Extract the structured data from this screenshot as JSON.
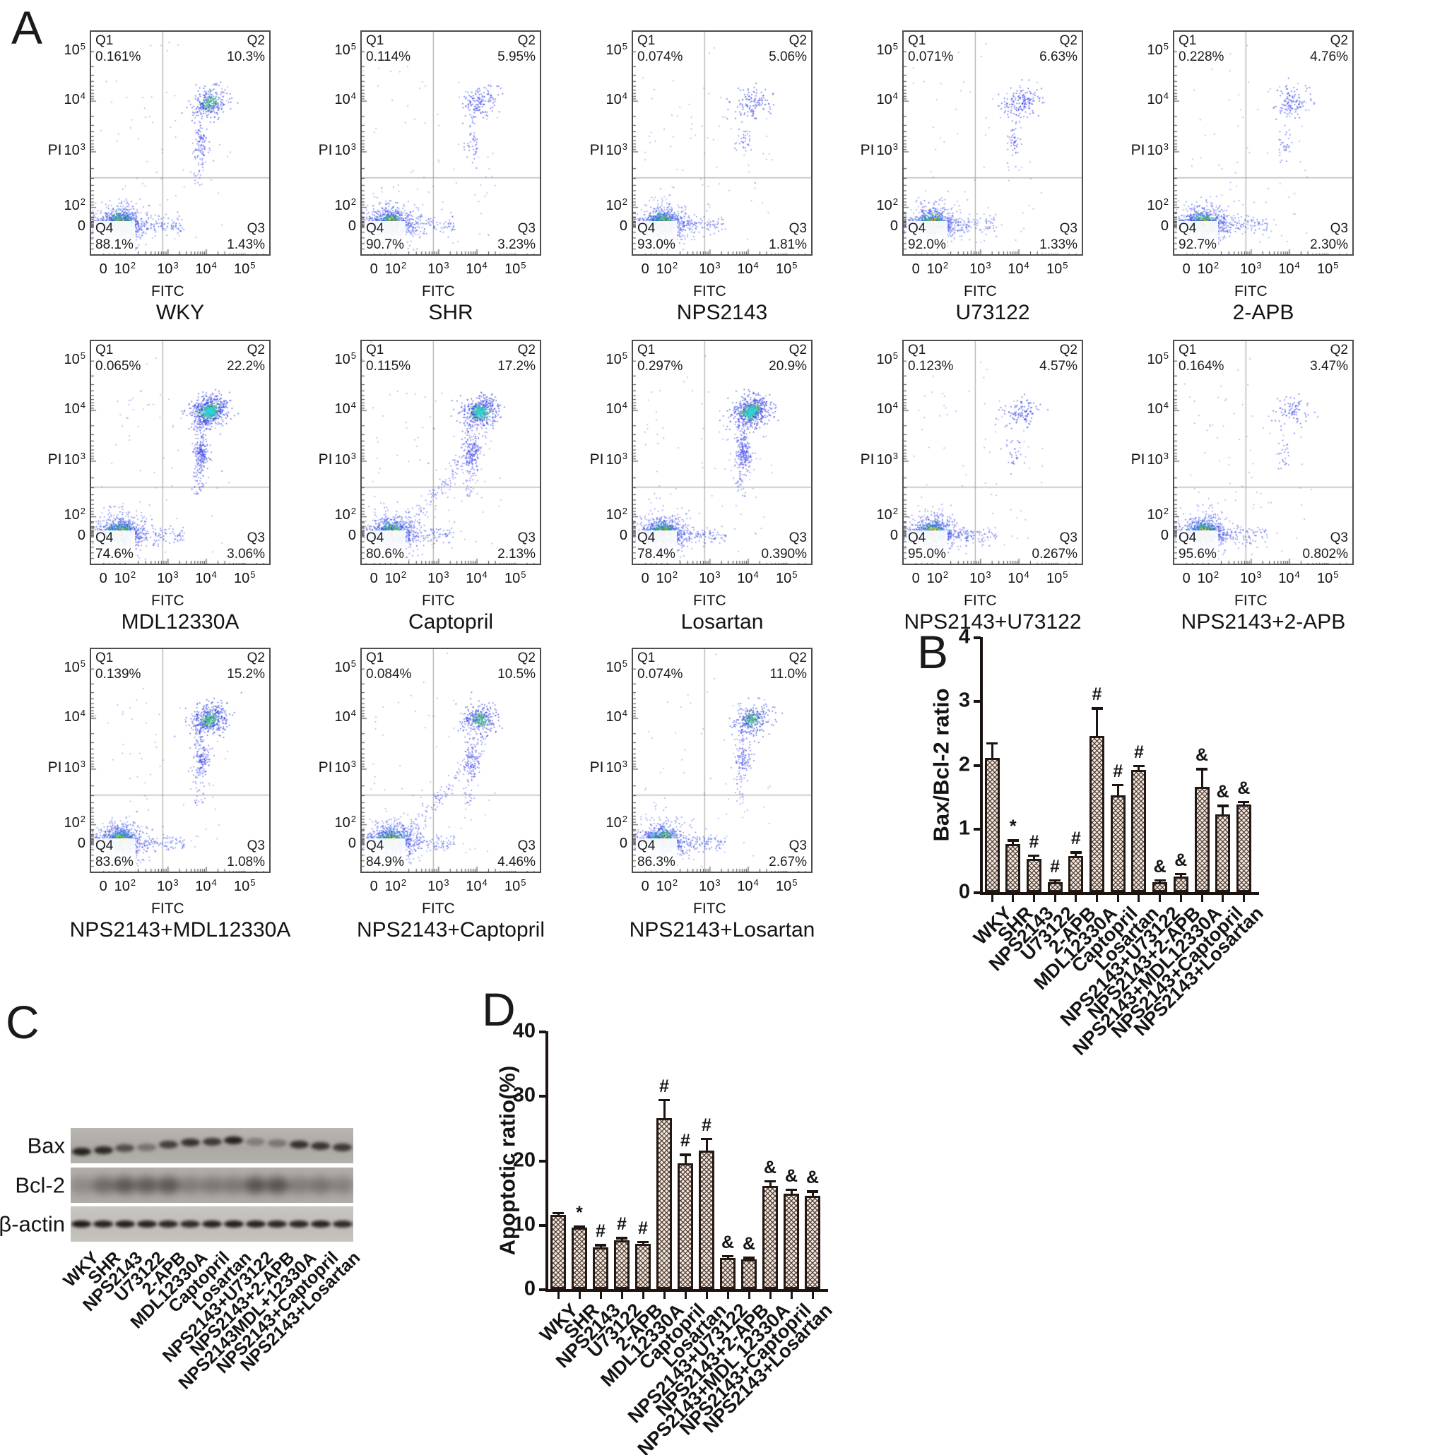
{
  "panels": {
    "A": {
      "label": "A"
    },
    "B": {
      "label": "B"
    },
    "C": {
      "label": "C"
    },
    "D": {
      "label": "D"
    }
  },
  "flow": {
    "x_axis_label": "FITC",
    "y_axis_label": "PI",
    "x_ticks": [
      {
        "t": "0"
      },
      {
        "t": "10",
        "e": "2"
      },
      {
        "t": "10",
        "e": "3"
      },
      {
        "t": "10",
        "e": "4"
      },
      {
        "t": "10",
        "e": "5"
      }
    ],
    "y_ticks": [
      {
        "t": "10",
        "e": "5"
      },
      {
        "t": "10",
        "e": "4"
      },
      {
        "t": "10",
        "e": "3",
        "prefix": "PI"
      },
      {
        "t": "10",
        "e": "2"
      },
      {
        "t": "0"
      }
    ],
    "quadrant_names": {
      "q1": "Q1",
      "q2": "Q2",
      "q3": "Q3",
      "q4": "Q4"
    },
    "plots": [
      {
        "title": "WKY",
        "q1": "0.161%",
        "q2": "10.3%",
        "q4": "88.1%",
        "q3": "1.43%",
        "q2_value": 10.3
      },
      {
        "title": "SHR",
        "q1": "0.114%",
        "q2": "5.95%",
        "q4": "90.7%",
        "q3": "3.23%",
        "q2_value": 5.95
      },
      {
        "title": "NPS2143",
        "q1": "0.074%",
        "q2": "5.06%",
        "q4": "93.0%",
        "q3": "1.81%",
        "q2_value": 5.06
      },
      {
        "title": "U73122",
        "q1": "0.071%",
        "q2": "6.63%",
        "q4": "92.0%",
        "q3": "1.33%",
        "q2_value": 6.63
      },
      {
        "title": "2-APB",
        "q1": "0.228%",
        "q2": "4.76%",
        "q4": "92.7%",
        "q3": "2.30%",
        "q2_value": 4.76
      },
      {
        "title": "MDL12330A",
        "q1": "0.065%",
        "q2": "22.2%",
        "q4": "74.6%",
        "q3": "3.06%",
        "q2_value": 22.2
      },
      {
        "title": "Captopril",
        "q1": "0.115%",
        "q2": "17.2%",
        "q4": "80.6%",
        "q3": "2.13%",
        "q2_value": 17.2
      },
      {
        "title": "Losartan",
        "q1": "0.297%",
        "q2": "20.9%",
        "q4": "78.4%",
        "q3": "0.390%",
        "q2_value": 20.9
      },
      {
        "title": "NPS2143+U73122",
        "q1": "0.123%",
        "q2": "4.57%",
        "q4": "95.0%",
        "q3": "0.267%",
        "q2_value": 4.57
      },
      {
        "title": "NPS2143+2-APB",
        "q1": "0.164%",
        "q2": "3.47%",
        "q4": "95.6%",
        "q3": "0.802%",
        "q2_value": 3.47
      },
      {
        "title": "NPS2143+MDL12330A",
        "q1": "0.139%",
        "q2": "15.2%",
        "q4": "83.6%",
        "q3": "1.08%",
        "q2_value": 15.2
      },
      {
        "title": "NPS2143+Captopril",
        "q1": "0.084%",
        "q2": "10.5%",
        "q4": "84.9%",
        "q3": "4.46%",
        "q2_value": 10.5
      },
      {
        "title": "NPS2143+Losartan",
        "q1": "0.074%",
        "q2": "11.0%",
        "q4": "86.3%",
        "q3": "2.67%",
        "q2_value": 11.0
      }
    ]
  },
  "chart_data": [
    {
      "id": "B",
      "type": "bar",
      "ylabel": "Bax/Bcl-2 ratio",
      "ylim": [
        0,
        4
      ],
      "yticks": [
        0,
        1,
        2,
        3,
        4
      ],
      "grid": false,
      "categories": [
        "WKY",
        "SHR",
        "NPS2143",
        "U73122",
        "2-APB",
        "MDL12330A",
        "Captopril",
        "Losartan",
        "NPS2143+U73122",
        "NPS2143+2-APB",
        "NPS2143+MDL12330A",
        "NPS2143+Captopril",
        "NPS2143+Losartan"
      ],
      "values": [
        2.1,
        0.75,
        0.52,
        0.15,
        0.57,
        2.45,
        1.52,
        1.92,
        0.15,
        0.24,
        1.65,
        1.22,
        1.37
      ],
      "errors": [
        0.25,
        0.08,
        0.07,
        0.05,
        0.07,
        0.45,
        0.18,
        0.08,
        0.05,
        0.06,
        0.3,
        0.15,
        0.06
      ],
      "annotations": [
        "",
        "*",
        "#",
        "#",
        "#",
        "#",
        "#",
        "#",
        "&",
        "&",
        "&",
        "&",
        "&"
      ]
    },
    {
      "id": "D",
      "type": "bar",
      "ylabel": "Apoptotic ratio(%)",
      "ylim": [
        0,
        40
      ],
      "yticks": [
        0,
        10,
        20,
        30,
        40
      ],
      "grid": false,
      "categories": [
        "WKY",
        "SHR",
        "NPS2143",
        "U73122",
        "2-APB",
        "MDL12330A",
        "Captopril",
        "Losartan",
        "NPS2143+U73122",
        "NPS2143+2-APB",
        "NPS2143+MDL 12330A",
        "NPS2143+Captopril",
        "NPS2143+Losartan"
      ],
      "values": [
        11.5,
        9.5,
        6.5,
        7.6,
        7.0,
        26.5,
        19.5,
        21.5,
        4.8,
        4.6,
        16.0,
        14.8,
        14.5
      ],
      "errors": [
        0.5,
        0.4,
        0.5,
        0.5,
        0.5,
        3.0,
        1.5,
        2.0,
        0.5,
        0.4,
        0.9,
        0.8,
        0.8
      ],
      "annotations": [
        "",
        "*",
        "#",
        "#",
        "#",
        "#",
        "#",
        "#",
        "&",
        "&",
        "&",
        "&",
        "&"
      ]
    }
  ],
  "western_blot": {
    "rows": [
      {
        "name": "Bax",
        "intensities": [
          0.9,
          0.85,
          0.6,
          0.35,
          0.7,
          0.8,
          0.75,
          0.9,
          0.3,
          0.35,
          0.8,
          0.78,
          0.75
        ]
      },
      {
        "name": "Bcl-2",
        "intensities": [
          0.3,
          0.65,
          0.85,
          0.8,
          0.85,
          0.45,
          0.5,
          0.5,
          0.9,
          0.9,
          0.45,
          0.55,
          0.4
        ]
      },
      {
        "name": "β-actin",
        "intensities": [
          0.95,
          0.9,
          0.92,
          0.9,
          0.88,
          0.85,
          0.9,
          0.92,
          0.9,
          0.88,
          0.88,
          0.9,
          0.85
        ]
      }
    ],
    "lanes": [
      "WKY",
      "SHR",
      "NPS2143",
      "U73122",
      "2-APB",
      "MDL12330A",
      "Captopril",
      "Losartan",
      "NPS2143+U73122",
      "NPS2143+2-APB",
      "NPS2143MDL+12330A",
      "NPS2143+Captopril",
      "NPS2143+Losartan"
    ]
  }
}
